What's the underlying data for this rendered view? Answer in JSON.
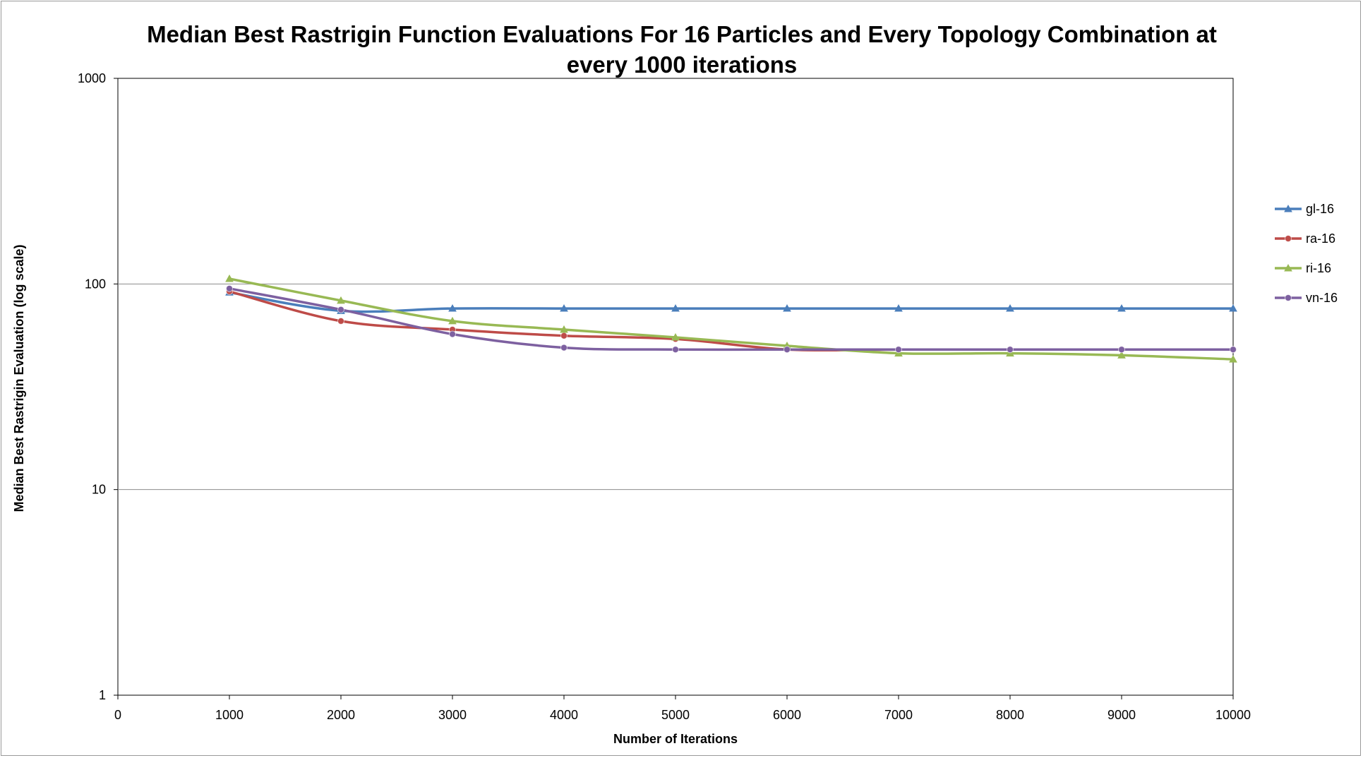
{
  "chart_data": {
    "type": "line",
    "title_lines": [
      "Median Best Rastrigin Function Evaluations For 16 Particles and Every Topology Combination at",
      "every 1000 iterations"
    ],
    "xlabel": "Number of Iterations",
    "ylabel": "Median Best Rastrigin Evaluation (log scale)",
    "xlim": [
      0,
      10000
    ],
    "ylim": [
      1,
      1000
    ],
    "y_scale": "log",
    "x_ticks": [
      "0",
      "1000",
      "2000",
      "3000",
      "4000",
      "5000",
      "6000",
      "7000",
      "8000",
      "9000",
      "10000"
    ],
    "y_ticks": [
      "1",
      "10",
      "100",
      "1000"
    ],
    "grid": "horizontal",
    "legend_position": "right",
    "x": [
      1000,
      2000,
      3000,
      4000,
      5000,
      6000,
      7000,
      8000,
      9000,
      10000
    ],
    "series": [
      {
        "name": "gl-16",
        "color": "#4a7ebb",
        "marker": "triangle",
        "values": [
          91,
          74,
          76,
          76,
          76,
          76,
          76,
          76,
          76,
          76
        ]
      },
      {
        "name": "ra-16",
        "color": "#be4b48",
        "marker": "circle",
        "values": [
          92,
          66,
          60,
          56,
          54,
          48,
          48,
          48,
          48,
          48
        ]
      },
      {
        "name": "ri-16",
        "color": "#98b954",
        "marker": "triangle",
        "values": [
          106,
          83,
          66,
          60,
          55,
          50,
          46,
          46,
          45,
          43
        ]
      },
      {
        "name": "vn-16",
        "color": "#7d60a0",
        "marker": "circle",
        "values": [
          95,
          75,
          57,
          49,
          48,
          48,
          48,
          48,
          48,
          48
        ]
      }
    ]
  }
}
